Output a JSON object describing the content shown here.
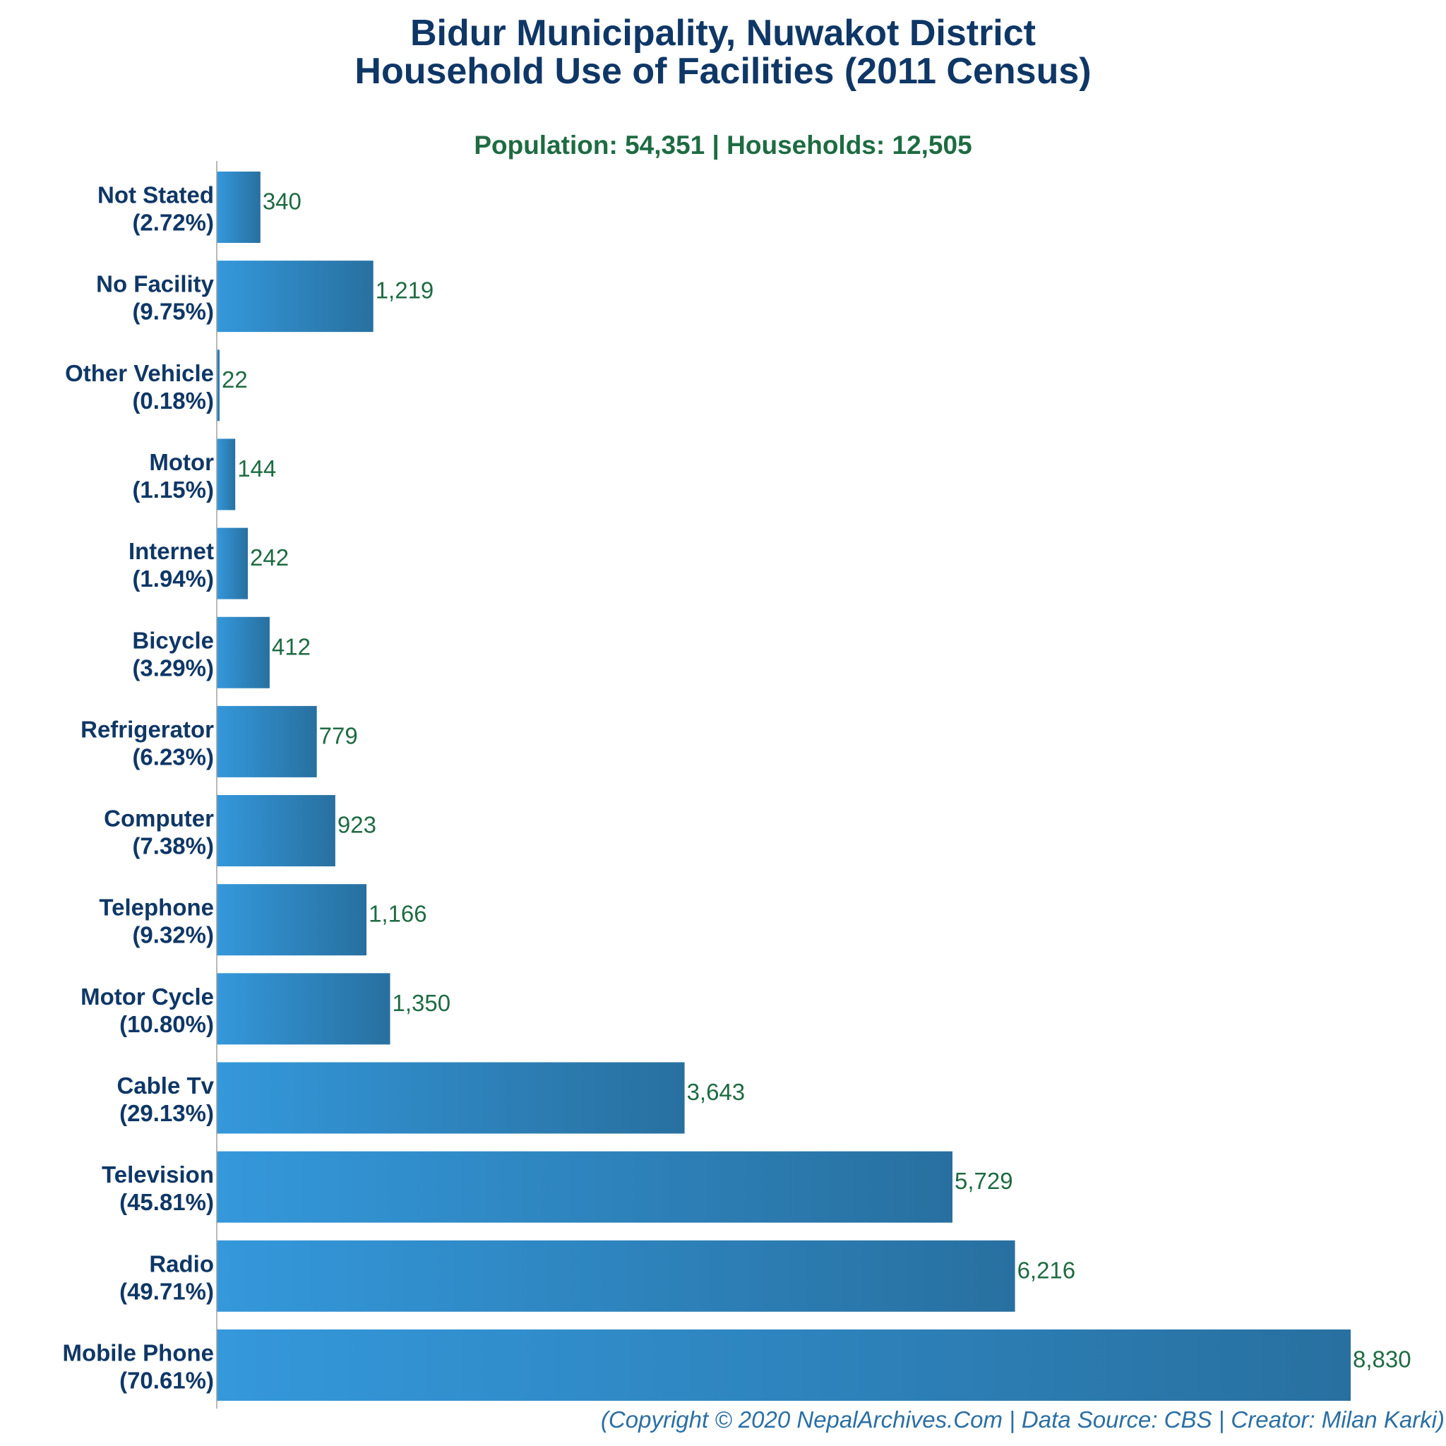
{
  "chart_data": {
    "type": "bar",
    "orientation": "horizontal",
    "title": [
      "Bidur Municipality, Nuwakot District",
      "Household Use of Facilities (2011 Census)"
    ],
    "subtitle": "Population: 54,351 | Households: 12,505",
    "categories": [
      "Not Stated",
      "No Facility",
      "Other Vehicle",
      "Motor",
      "Internet",
      "Bicycle",
      "Refrigerator",
      "Computer",
      "Telephone",
      "Motor Cycle",
      "Cable Tv",
      "Television",
      "Radio",
      "Mobile Phone"
    ],
    "percent_labels": [
      "(2.72%)",
      "(9.75%)",
      "(0.18%)",
      "(1.15%)",
      "(1.94%)",
      "(3.29%)",
      "(6.23%)",
      "(7.38%)",
      "(9.32%)",
      "(10.80%)",
      "(29.13%)",
      "(45.81%)",
      "(49.71%)",
      "(70.61%)"
    ],
    "values": [
      340,
      1219,
      22,
      144,
      242,
      412,
      779,
      923,
      1166,
      1350,
      3643,
      5729,
      6216,
      8830
    ],
    "value_labels": [
      "340",
      "1,219",
      "22",
      "144",
      "242",
      "412",
      "779",
      "923",
      "1,166",
      "1,350",
      "3,643",
      "5,729",
      "6,216",
      "8,830"
    ],
    "xlim": [
      0,
      8830
    ],
    "xlabel": "",
    "ylabel": "",
    "grid": false,
    "legend": "none",
    "bar_color_start": "#3498db",
    "bar_color_end": "#2870a0"
  },
  "footer": "(Copyright © 2020 NepalArchives.Com | Data Source: CBS | Creator: Milan Karki)"
}
